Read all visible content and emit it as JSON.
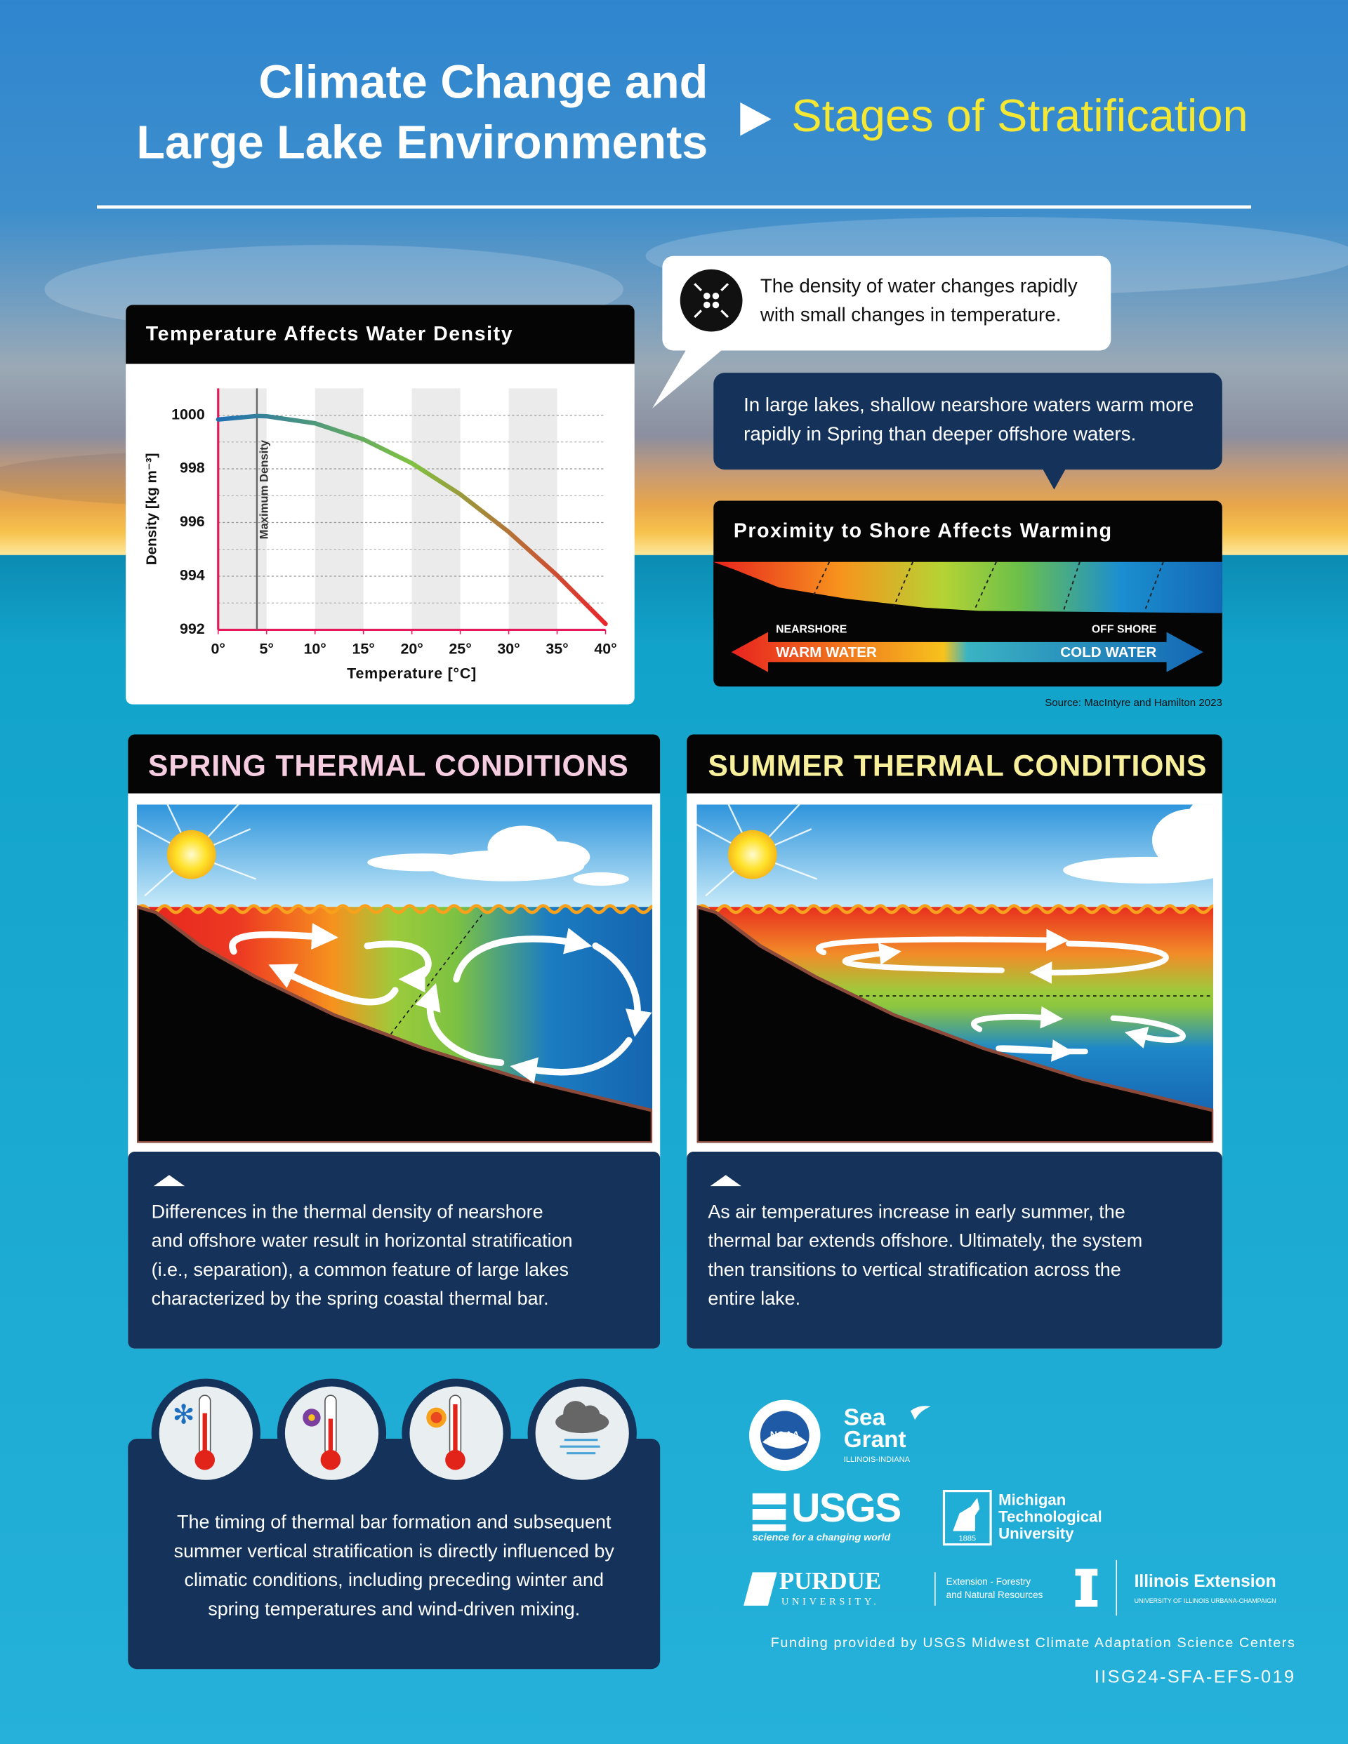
{
  "header": {
    "title": [
      "Climate Change and",
      "Large Lake Environments"
    ],
    "subtitle": "Stages of Stratification"
  },
  "callouts": {
    "density": [
      "The density of water changes rapidly",
      "with small changes in temperature."
    ],
    "nearshore": [
      "In large lakes, shallow nearshore waters warm more",
      "rapidly in Spring than deeper offshore waters."
    ]
  },
  "chart_data": {
    "type": "line",
    "title": "Temperature Affects Water Density",
    "x_label": "Temperature [°C]",
    "y_label": "Density [kg m⁻³]",
    "x": [
      0,
      4,
      5,
      10,
      15,
      20,
      25,
      30,
      35,
      40
    ],
    "values": [
      999.84,
      999.97,
      999.96,
      999.7,
      999.1,
      998.21,
      997.05,
      995.65,
      994.03,
      992.22
    ],
    "line_gradient": [
      "#1f6fb5",
      "#7fc241",
      "#e8262c"
    ],
    "xlim": [
      0,
      40
    ],
    "ylim": [
      992,
      1001
    ],
    "xticks": [
      {
        "value": 0,
        "label": "0°"
      },
      {
        "value": 5,
        "label": "5°"
      },
      {
        "value": 10,
        "label": "10°"
      },
      {
        "value": 15,
        "label": "15°"
      },
      {
        "value": 20,
        "label": "20°"
      },
      {
        "value": 25,
        "label": "25°"
      },
      {
        "value": 30,
        "label": "30°"
      },
      {
        "value": 35,
        "label": "35°"
      },
      {
        "value": 40,
        "label": "40°"
      }
    ],
    "yticks": [
      992,
      994,
      996,
      998,
      1000
    ],
    "minor_yticks": [
      993,
      995,
      997,
      999
    ],
    "grid": true,
    "annotations": [
      {
        "text": "Maximum Density",
        "x": 4
      }
    ]
  },
  "proximity": {
    "title": "Proximity to Shore Affects Warming",
    "nearshore": "NEARSHORE",
    "warm": "WARM WATER",
    "offshore": "OFF SHORE",
    "cold": "COLD WATER",
    "source": "Source: MacIntyre and Hamilton 2023"
  },
  "panels": [
    {
      "title": "SPRING THERMAL CONDITIONS",
      "text": [
        "Differences in the thermal density of nearshore",
        "and offshore water result in horizontal stratification",
        "(i.e., separation), a common feature of large lakes",
        "characterized by the spring coastal thermal bar."
      ]
    },
    {
      "title": "SUMMER THERMAL CONDITIONS",
      "text": [
        "As air temperatures increase in early summer, the",
        "thermal bar extends offshore. Ultimately, the system",
        "then transitions to vertical stratification across the",
        "entire lake."
      ]
    }
  ],
  "climate": {
    "text": [
      "The timing of thermal bar formation and subsequent",
      "summer vertical stratification is directly influenced by",
      "climatic conditions, including preceding winter and",
      "spring temperatures and wind-driven mixing."
    ]
  },
  "logos": {
    "noaa": "NOAA",
    "seagrant": [
      "Sea",
      "Grant"
    ],
    "seagrant_sub": "ILLINOIS-INDIANA",
    "usgs": "USGS",
    "usgs_sub": "science for a changing world",
    "mtu": [
      "Michigan",
      "Technological",
      "University"
    ],
    "mtu_year": "1885",
    "purdue": "PURDUE",
    "purdue_sub": "UNIVERSITY.",
    "purdue_ext": [
      "Extension - Forestry",
      "and Natural Resources"
    ],
    "illinois": "Illinois Extension",
    "illinois_sub": "UNIVERSITY OF ILLINOIS URBANA-CHAMPAIGN"
  },
  "funding": "Funding provided by USGS Midwest Climate Adaptation Science Centers",
  "code": "IISG24-SFA-EFS-019"
}
